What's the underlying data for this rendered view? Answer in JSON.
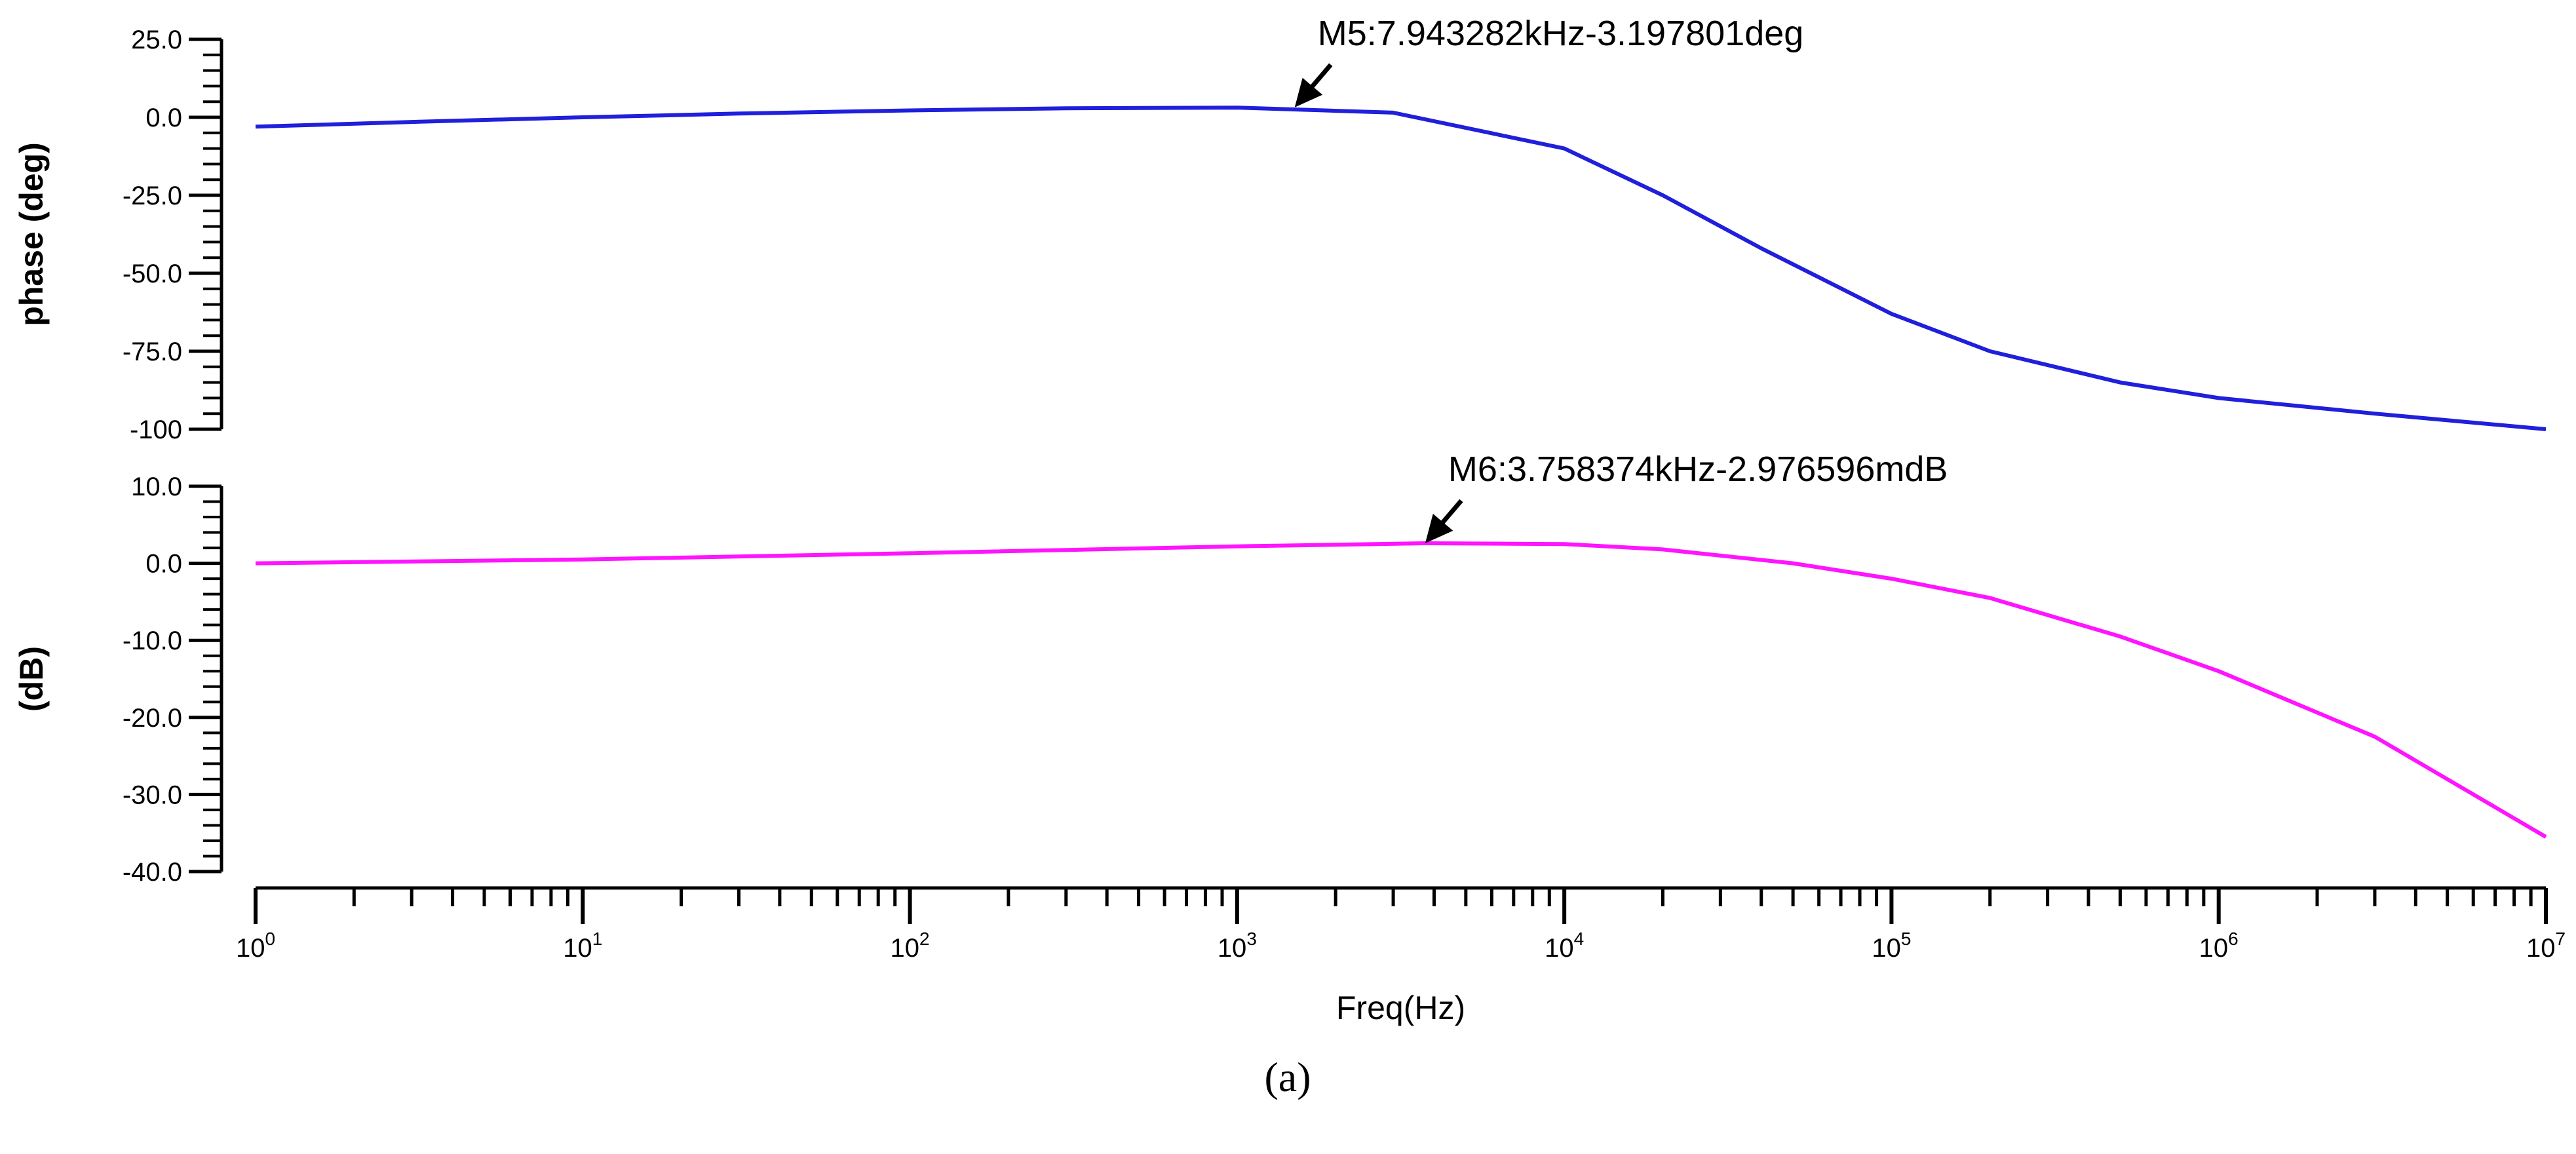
{
  "chart_data": [
    {
      "type": "line",
      "panel": "top",
      "ylabel": "phase (deg)",
      "xscale": "log",
      "xlim": [
        1,
        10000000
      ],
      "ylim": [
        -100,
        25
      ],
      "yticks": [
        "25.0",
        "0.0",
        "-25.0",
        "-50.0",
        "-75.0",
        "-100"
      ],
      "ytick_values": [
        25,
        0,
        -25,
        -50,
        -75,
        -100
      ],
      "series": [
        {
          "color": "#1f1fdc",
          "x": [
            1,
            3,
            10,
            30,
            100,
            300,
            1000,
            3000,
            10000,
            20000,
            40000,
            100000,
            200000,
            500000,
            1000000,
            3000000,
            10000000
          ],
          "y": [
            -3,
            -1.5,
            0,
            1.2,
            2.2,
            2.9,
            3.1,
            1.5,
            -10,
            -25,
            -42,
            -63,
            -75,
            -85,
            -90,
            -95,
            -100
          ]
        }
      ],
      "annotation": {
        "text": "M5:7.943282kHz-3.197801deg",
        "x": 1500,
        "y": 3.2
      }
    },
    {
      "type": "line",
      "panel": "bottom",
      "ylabel": "(dB)",
      "xlabel": "Freq(Hz)",
      "xscale": "log",
      "xlim": [
        1,
        10000000
      ],
      "ylim": [
        -40,
        10
      ],
      "yticks": [
        "10.0",
        "0.0",
        "-10.0",
        "-20.0",
        "-30.0",
        "-40.0"
      ],
      "ytick_values": [
        10,
        0,
        -10,
        -20,
        -30,
        -40
      ],
      "xticks": [
        {
          "base": "10",
          "exp": "0"
        },
        {
          "base": "10",
          "exp": "1"
        },
        {
          "base": "10",
          "exp": "2"
        },
        {
          "base": "10",
          "exp": "3"
        },
        {
          "base": "10",
          "exp": "4"
        },
        {
          "base": "10",
          "exp": "5"
        },
        {
          "base": "10",
          "exp": "6"
        },
        {
          "base": "10",
          "exp": "7"
        }
      ],
      "series": [
        {
          "color": "#ff14ff",
          "x": [
            1,
            10,
            100,
            1000,
            3758,
            10000,
            20000,
            50000,
            100000,
            200000,
            500000,
            1000000,
            3000000,
            10000000
          ],
          "y": [
            0,
            0.5,
            1.3,
            2.2,
            2.6,
            2.5,
            1.8,
            0,
            -2,
            -4.5,
            -9.5,
            -14,
            -22.5,
            -35.5
          ]
        }
      ],
      "annotation": {
        "text": "M6:3.758374kHz-2.976596mdB",
        "x": 3758,
        "y": 2.6
      }
    }
  ],
  "caption": "(a)"
}
